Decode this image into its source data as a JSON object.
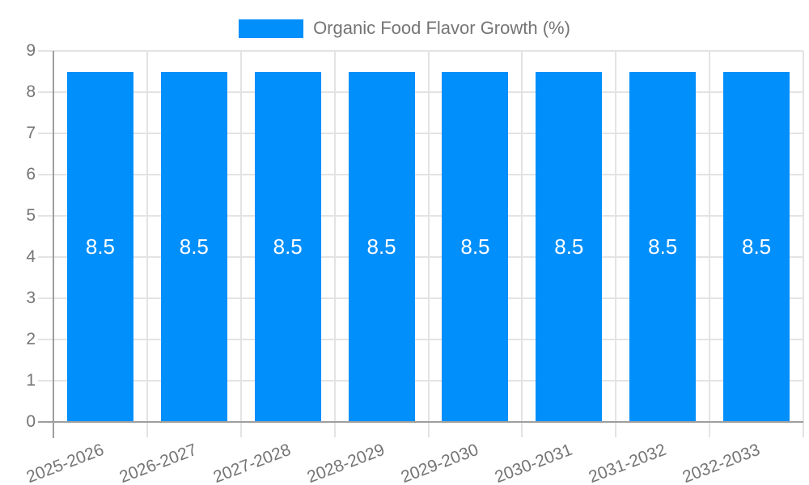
{
  "legend": {
    "swatch_icon": "legend-swatch",
    "label": "Organic Food Flavor Growth (%)"
  },
  "chart_data": {
    "type": "bar",
    "title": "Organic Food Flavor Growth (%)",
    "categories": [
      "2025-2026",
      "2026-2027",
      "2027-2028",
      "2028-2029",
      "2029-2030",
      "2030-2031",
      "2031-2032",
      "2032-2033"
    ],
    "series": [
      {
        "name": "Organic Food Flavor Growth (%)",
        "values": [
          8.5,
          8.5,
          8.5,
          8.5,
          8.5,
          8.5,
          8.5,
          8.5
        ]
      }
    ],
    "bar_labels": [
      "8.5",
      "8.5",
      "8.5",
      "8.5",
      "8.5",
      "8.5",
      "8.5",
      "8.5"
    ],
    "xlabel": "",
    "ylabel": "",
    "ylim": [
      0,
      9
    ],
    "ytick_step": 1,
    "ytick_labels": [
      "0",
      "1",
      "2",
      "3",
      "4",
      "5",
      "6",
      "7",
      "8",
      "9"
    ],
    "grid": true,
    "legend_position": "top",
    "colors": {
      "bar": "#008FFB",
      "bar_label": "#FFFFFF",
      "axis_text": "#757575",
      "gridline": "#E3E3E3",
      "axis_line": "#9E9E9E"
    }
  }
}
